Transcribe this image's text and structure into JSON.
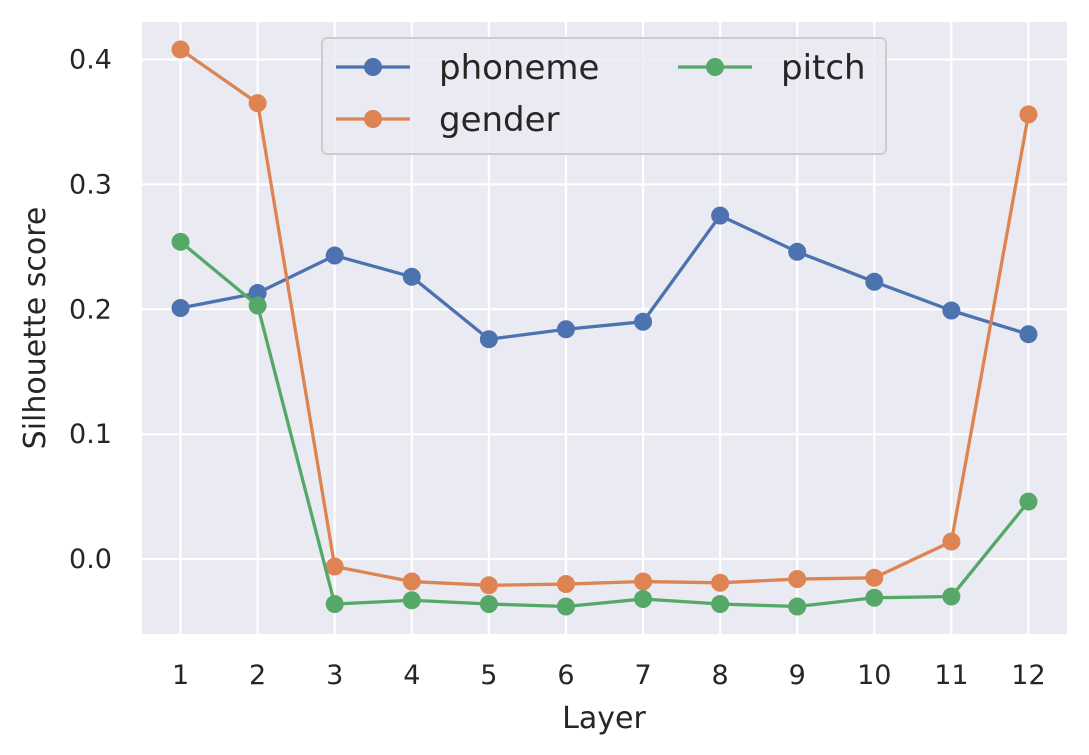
{
  "chart_data": {
    "type": "line",
    "title": "",
    "xlabel": "Layer",
    "ylabel": "Silhouette score",
    "x": [
      1,
      2,
      3,
      4,
      5,
      6,
      7,
      8,
      9,
      10,
      11,
      12
    ],
    "xlim": [
      0.5,
      12.5
    ],
    "ylim": [
      -0.06,
      0.43
    ],
    "yticks": [
      0.0,
      0.1,
      0.2,
      0.3,
      0.4
    ],
    "yticklabels": [
      "0.0",
      "0.1",
      "0.2",
      "0.3",
      "0.4"
    ],
    "grid": true,
    "background": "#eaeaf2",
    "gridcolor": "#ffffff",
    "legend": {
      "position": "upper-center",
      "columns": 2
    },
    "series": [
      {
        "name": "phoneme",
        "color": "#4c72b0",
        "values": [
          0.201,
          0.213,
          0.243,
          0.226,
          0.176,
          0.184,
          0.19,
          0.275,
          0.246,
          0.222,
          0.199,
          0.18
        ]
      },
      {
        "name": "gender",
        "color": "#dd8452",
        "values": [
          0.408,
          0.365,
          -0.006,
          -0.018,
          -0.021,
          -0.02,
          -0.018,
          -0.019,
          -0.016,
          -0.015,
          0.014,
          0.356
        ]
      },
      {
        "name": "pitch",
        "color": "#55a868",
        "values": [
          0.254,
          0.203,
          -0.036,
          -0.033,
          -0.036,
          -0.038,
          -0.032,
          -0.036,
          -0.038,
          -0.031,
          -0.03,
          0.046
        ]
      }
    ]
  }
}
